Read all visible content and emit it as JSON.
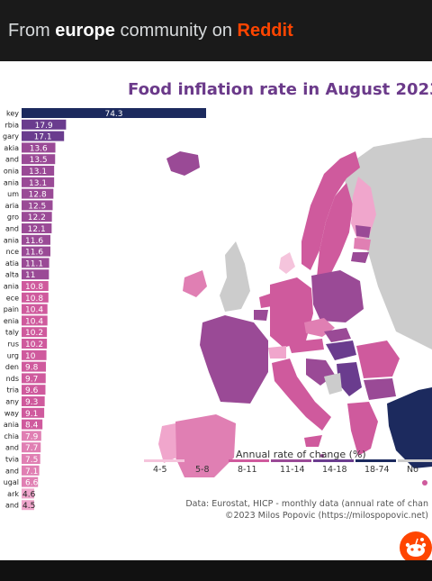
{
  "header": {
    "prefix": "From ",
    "community": "europe",
    "middle": " community on ",
    "brand": "Reddit"
  },
  "chart_data": {
    "type": "bar",
    "title": "Food inflation rate in August 2023",
    "categories": [
      "key",
      "rbia",
      "gary",
      "akia",
      "and",
      "onia",
      "ania",
      "um",
      "aria",
      "gro",
      "and",
      "ania",
      "nce",
      "atia",
      "alta",
      "ania",
      "ece",
      "pain",
      "enia",
      "taly",
      "rus",
      "urg",
      "den",
      "nds",
      "tria",
      "any",
      "way",
      "ania",
      "chia",
      "and",
      "tvia",
      "and",
      "ugal",
      "ark",
      "and"
    ],
    "values": [
      74.3,
      17.9,
      17.1,
      13.6,
      13.5,
      13.1,
      13.1,
      12.8,
      12.5,
      12.2,
      12.1,
      11.6,
      11.6,
      11.1,
      11,
      10.8,
      10.8,
      10.4,
      10.4,
      10.2,
      10.2,
      10,
      9.8,
      9.7,
      9.6,
      9.3,
      9.1,
      8.4,
      7.9,
      7.7,
      7.5,
      7.1,
      6.6,
      4.6,
      4.5
    ],
    "value_labels": [
      "74.3",
      "17.9",
      "17.1",
      "13.6",
      "13.5",
      "13.1",
      "13.1",
      "12.8",
      "12.5",
      "12.2",
      "12.1",
      "11.6",
      "11.6",
      "11.1",
      "11",
      "10.8",
      "10.8",
      "10.4",
      "10.4",
      "10.2",
      "10.2",
      "10",
      "9.8",
      "9.7",
      "9.6",
      "9.3",
      "9.1",
      "8.4",
      "7.9",
      "7.7",
      "7.5",
      "7.1",
      "6.6",
      "4.6",
      "4.5"
    ],
    "legend": {
      "title": "Annual rate of change (%)",
      "bins": [
        {
          "label": "4-5",
          "color": "#f5c4dc"
        },
        {
          "label": "5-8",
          "color": "#e07fb3"
        },
        {
          "label": "8-11",
          "color": "#cf5a9d"
        },
        {
          "label": "11-14",
          "color": "#9a4a96"
        },
        {
          "label": "14-18",
          "color": "#6a3c8e"
        },
        {
          "label": "18-74",
          "color": "#1c2a5e"
        },
        {
          "label": "No",
          "color": "#cccccc"
        }
      ]
    }
  },
  "source": {
    "line1": "Data: Eurostat, HICP - monthly data (annual rate of chan",
    "line2": "©2023 Milos Popovic (https://milospopovic.net)"
  },
  "colors": {
    "brand": "#ff4500",
    "title": "#6b3a8a",
    "no_data": "#cccccc",
    "top_bar": "#1c2a5e"
  },
  "icons": {
    "reddit": "reddit-snoo-icon"
  }
}
